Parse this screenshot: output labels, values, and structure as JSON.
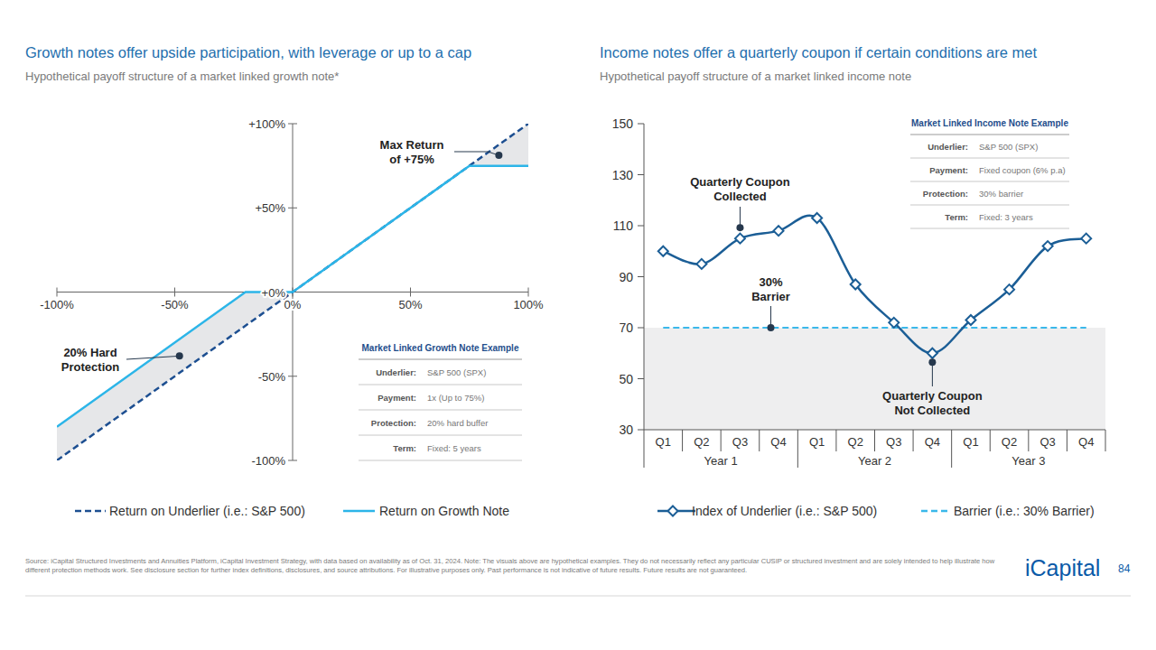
{
  "page": {
    "logo": "iCapital",
    "page_number": "84",
    "footer": "Source: iCapital Structured Investments and Annuities Platform, iCapital Investment Strategy, with data based on availability as of Oct. 31, 2024. Note: The visuals above are hypothetical examples. They do not necessarily reflect any particular CUSIP or structured investment and are solely intended to help illustrate how different protection methods work. See disclosure section for further index definitions, disclosures, and source attributions. For illustrative purposes only. Past performance is not indicative of future results. Future results are not guaranteed."
  },
  "chart_data": [
    {
      "type": "line",
      "title": "Growth notes offer upside participation, with leverage or up to a cap",
      "subtitle": "Hypothetical payoff structure of a market linked growth note*",
      "x": [
        -100,
        -20,
        0,
        75,
        100
      ],
      "series": [
        {
          "name": "Return on Underlier (i.e.: S&P 500)",
          "color": "#1d4f91",
          "line_style": "dashed",
          "values": [
            -100,
            -20,
            0,
            75,
            100
          ]
        },
        {
          "name": "Return on Growth Note",
          "color": "#2cb5e8",
          "line_style": "solid",
          "values": [
            -80,
            0,
            0,
            75,
            75
          ]
        }
      ],
      "xlim": [
        -100,
        100
      ],
      "ylim": [
        -100,
        100
      ],
      "xticks": [
        {
          "value": -100,
          "label": "-100%"
        },
        {
          "value": -50,
          "label": "-50%"
        },
        {
          "value": 0,
          "label": "0%"
        },
        {
          "value": 50,
          "label": "50%"
        },
        {
          "value": 100,
          "label": "100%"
        }
      ],
      "yticks": [
        {
          "value": -100,
          "label": "-100%"
        },
        {
          "value": -50,
          "label": "-50%"
        },
        {
          "value": 0,
          "label": "+0%"
        },
        {
          "value": 50,
          "label": "+50%"
        },
        {
          "value": 100,
          "label": "+100%"
        }
      ],
      "grid": false,
      "legend": "bottom",
      "annotations": [
        {
          "text": [
            "Max Return",
            "of +75%"
          ]
        },
        {
          "text": [
            "20% Hard",
            "Protection"
          ]
        }
      ],
      "info_box": {
        "title": "Market Linked Growth Note Example",
        "rows": [
          [
            "Underlier:",
            "S&P 500 (SPX)"
          ],
          [
            "Payment:",
            "1x (Up to 75%)"
          ],
          [
            "Protection:",
            "20% hard buffer"
          ],
          [
            "Term:",
            "Fixed: 5 years"
          ]
        ]
      }
    },
    {
      "type": "line",
      "title": "Income notes offer a quarterly coupon if certain conditions are met",
      "subtitle": "Hypothetical payoff structure of a market linked income note",
      "categories": [
        "Q1",
        "Q2",
        "Q3",
        "Q4",
        "Q1",
        "Q2",
        "Q3",
        "Q4",
        "Q1",
        "Q2",
        "Q3",
        "Q4"
      ],
      "groups": [
        "Year 1",
        "Year 2",
        "Year 3"
      ],
      "series": [
        {
          "name": "Index of Underlier (i.e.: S&P 500)",
          "color": "#1b5e96",
          "marker": "diamond",
          "line_style": "solid",
          "values": [
            100,
            95,
            105,
            108,
            113,
            87,
            72,
            60,
            73,
            85,
            102,
            105
          ]
        },
        {
          "name": "Barrier (i.e.: 30% Barrier)",
          "color": "#3ab8ea",
          "line_style": "dashed",
          "values": [
            70,
            70,
            70,
            70,
            70,
            70,
            70,
            70,
            70,
            70,
            70,
            70
          ]
        }
      ],
      "ylim": [
        30,
        150
      ],
      "yticks": [
        30,
        50,
        70,
        90,
        110,
        130,
        150
      ],
      "grid": false,
      "legend": "bottom",
      "annotations": [
        {
          "text": [
            "Quarterly Coupon",
            "Collected"
          ]
        },
        {
          "text": [
            "30%",
            "Barrier"
          ]
        },
        {
          "text": [
            "Quarterly Coupon",
            "Not Collected"
          ]
        }
      ],
      "info_box": {
        "title": "Market Linked Income Note Example",
        "rows": [
          [
            "Underlier:",
            "S&P 500 (SPX)"
          ],
          [
            "Payment:",
            "Fixed coupon (6% p.a)"
          ],
          [
            "Protection:",
            "30% barrier"
          ],
          [
            "Term:",
            "Fixed: 3 years"
          ]
        ]
      }
    }
  ]
}
